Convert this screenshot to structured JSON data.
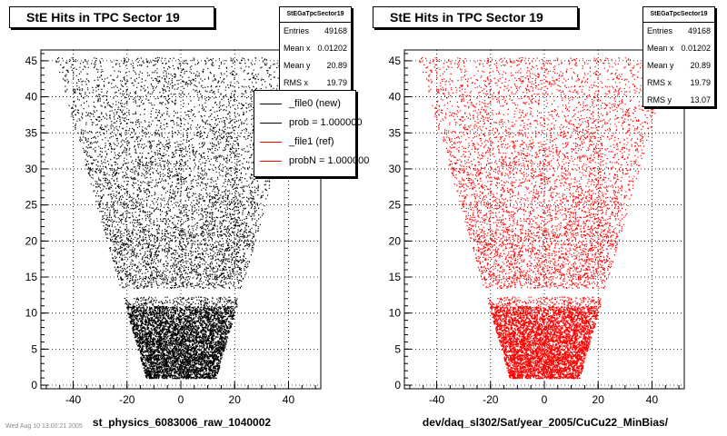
{
  "footer_note": "Wed Aug 10 13:00:21 2005",
  "chart_data": [
    {
      "type": "scatter",
      "title": "StE Hits in TPC Sector 19",
      "xlabel": "st_physics_6083006_raw_1040002",
      "ylabel": "",
      "xlim": [
        -52,
        52
      ],
      "ylim": [
        -0.5,
        46.5
      ],
      "x_ticks": [
        "-40",
        "-20",
        "0",
        "20",
        "40"
      ],
      "y_ticks": [
        "0",
        "5",
        "10",
        "15",
        "20",
        "25",
        "30",
        "35",
        "40",
        "45"
      ],
      "grid": true,
      "color": "#000000",
      "stats": {
        "name": "StEGaTpcSector19",
        "rows": [
          {
            "label": "Entries",
            "value": "49168"
          },
          {
            "label": "Mean x",
            "value": "0.01202"
          },
          {
            "label": "Mean y",
            "value": "20.89"
          },
          {
            "label": "RMS x",
            "value": "19.79"
          }
        ]
      },
      "legend": [
        {
          "label": "_file0 (new)",
          "color": "#000000"
        },
        {
          "label": "prob = 1.000000",
          "color": "#000000"
        },
        {
          "label": "_file1 (ref)",
          "color": "#ff0000"
        },
        {
          "label": "probN = 1.000000",
          "color": "#ff0000"
        }
      ],
      "region": {
        "description_points": "hits fill a trapezoid: half-width about 13 at y=1 widening to about 47 at y=45; gap at y approx 12.5-13.5",
        "bottom_half_width": 13,
        "top_half_width": 47,
        "y_min": 1,
        "y_max": 45.5,
        "gap": [
          12.3,
          13.5
        ],
        "entries": 49168
      }
    },
    {
      "type": "scatter",
      "title": "StE Hits in TPC Sector 19",
      "xlabel": "dev/daq_sl302/Sat/year_2005/CuCu22_MinBias/",
      "ylabel": "",
      "xlim": [
        -52,
        52
      ],
      "ylim": [
        -0.5,
        46.5
      ],
      "x_ticks": [
        "-40",
        "-20",
        "0",
        "20",
        "40"
      ],
      "y_ticks": [
        "0",
        "5",
        "10",
        "15",
        "20",
        "25",
        "30",
        "35",
        "40",
        "45"
      ],
      "grid": true,
      "color": "#ff0000",
      "stats": {
        "name": "StEGaTpcSector19",
        "rows": [
          {
            "label": "Entries",
            "value": "49168"
          },
          {
            "label": "Mean x",
            "value": "0.01202"
          },
          {
            "label": "Mean y",
            "value": "20.89"
          },
          {
            "label": "RMS x",
            "value": "19.79"
          },
          {
            "label": "RMS y",
            "value": "13.07"
          }
        ]
      },
      "region": {
        "bottom_half_width": 13,
        "top_half_width": 47,
        "y_min": 1,
        "y_max": 45.5,
        "gap": [
          12.3,
          13.5
        ],
        "entries": 49168
      }
    }
  ]
}
